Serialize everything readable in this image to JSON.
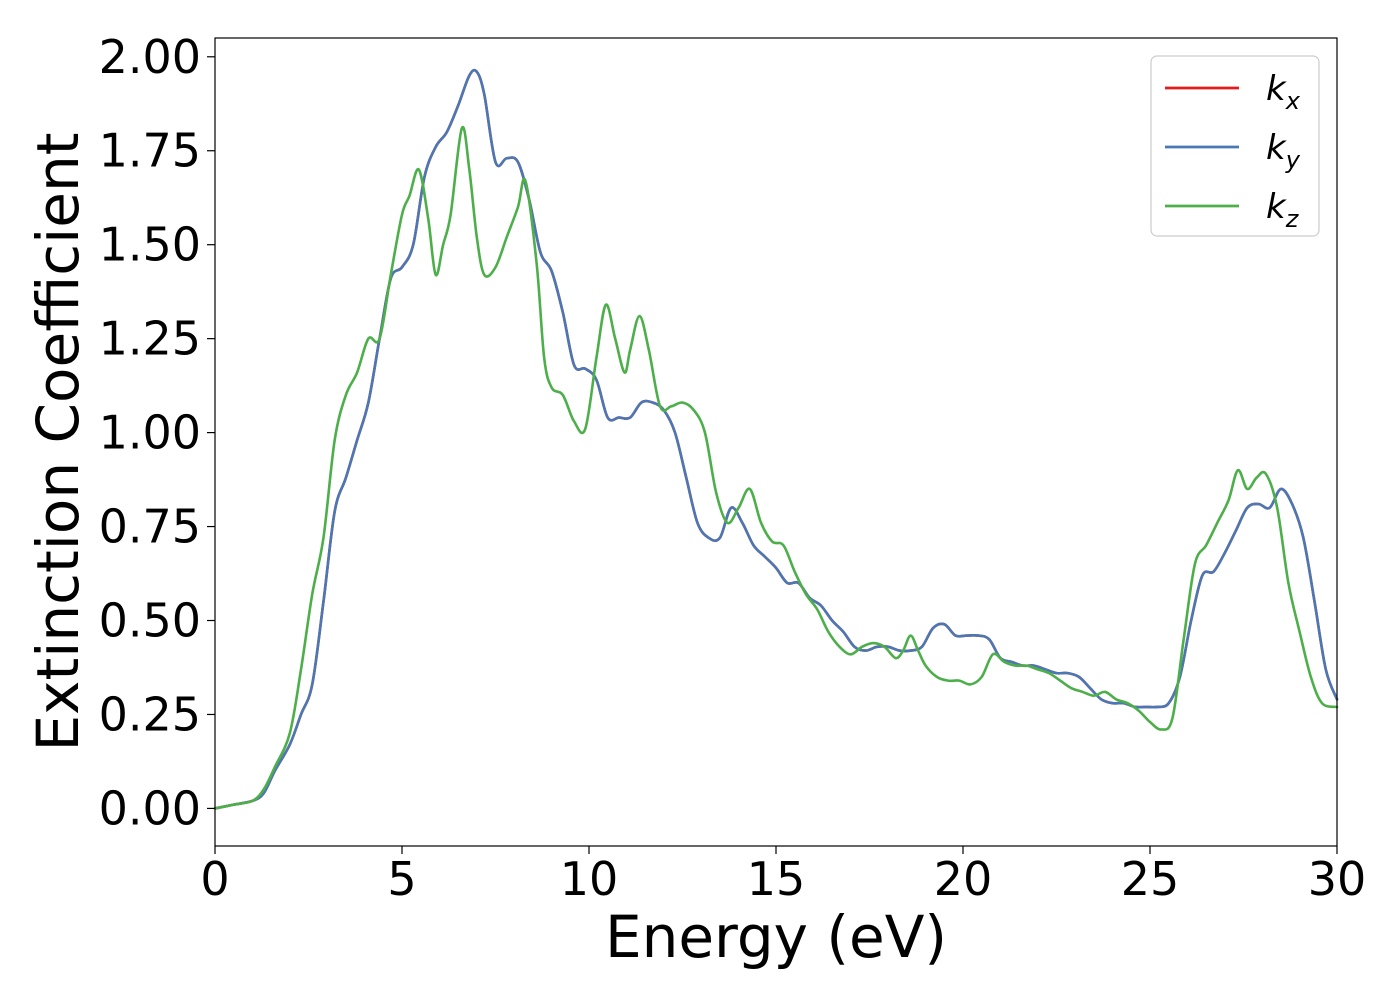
{
  "chart_data": {
    "type": "line",
    "title": "",
    "xlabel": "Energy (eV)",
    "ylabel": "Extinction Coefficient",
    "xlim": [
      0,
      30
    ],
    "ylim": [
      -0.1,
      2.05
    ],
    "xticks": [
      0,
      5,
      10,
      15,
      20,
      25,
      30
    ],
    "xtick_labels": [
      "0",
      "5",
      "10",
      "15",
      "20",
      "25",
      "30"
    ],
    "yticks": [
      0.0,
      0.25,
      0.5,
      0.75,
      1.0,
      1.25,
      1.5,
      1.75,
      2.0
    ],
    "ytick_labels": [
      "0.00",
      "0.25",
      "0.50",
      "0.75",
      "1.00",
      "1.25",
      "1.50",
      "1.75",
      "2.00"
    ],
    "grid": false,
    "legend_position": "top-right",
    "series": [
      {
        "name": "k",
        "subscript": "x",
        "color": "#e41a1c",
        "x": [
          0,
          0.5,
          1.0,
          1.3,
          1.6,
          2.0,
          2.3,
          2.6,
          2.9,
          3.2,
          3.5,
          3.8,
          4.1,
          4.4,
          4.7,
          5.0,
          5.3,
          5.6,
          5.9,
          6.2,
          6.5,
          6.8,
          7.0,
          7.2,
          7.5,
          7.8,
          8.1,
          8.4,
          8.7,
          9.0,
          9.3,
          9.6,
          9.9,
          10.2,
          10.5,
          10.8,
          11.1,
          11.4,
          11.7,
          12.0,
          12.3,
          12.6,
          12.9,
          13.2,
          13.5,
          13.8,
          14.1,
          14.4,
          14.7,
          15.0,
          15.3,
          15.6,
          15.9,
          16.2,
          16.5,
          16.8,
          17.1,
          17.4,
          17.7,
          18.0,
          18.3,
          18.6,
          18.9,
          19.2,
          19.5,
          19.8,
          20.1,
          20.4,
          20.7,
          21.0,
          21.3,
          21.6,
          21.9,
          22.2,
          22.5,
          22.8,
          23.1,
          23.4,
          23.7,
          24.0,
          24.3,
          24.6,
          24.9,
          25.2,
          25.5,
          25.8,
          26.1,
          26.4,
          26.7,
          27.0,
          27.3,
          27.6,
          27.9,
          28.2,
          28.5,
          28.8,
          29.1,
          29.4,
          29.7,
          30.0
        ],
        "y": [
          0.0,
          0.01,
          0.02,
          0.04,
          0.1,
          0.17,
          0.25,
          0.33,
          0.55,
          0.79,
          0.88,
          0.98,
          1.08,
          1.25,
          1.41,
          1.44,
          1.5,
          1.68,
          1.76,
          1.8,
          1.87,
          1.95,
          1.96,
          1.9,
          1.72,
          1.73,
          1.72,
          1.62,
          1.48,
          1.43,
          1.32,
          1.18,
          1.17,
          1.14,
          1.04,
          1.04,
          1.04,
          1.08,
          1.08,
          1.06,
          1.0,
          0.88,
          0.76,
          0.72,
          0.72,
          0.8,
          0.76,
          0.7,
          0.67,
          0.64,
          0.6,
          0.6,
          0.56,
          0.54,
          0.5,
          0.47,
          0.43,
          0.42,
          0.43,
          0.43,
          0.42,
          0.42,
          0.43,
          0.48,
          0.49,
          0.46,
          0.46,
          0.46,
          0.45,
          0.4,
          0.39,
          0.38,
          0.38,
          0.37,
          0.36,
          0.36,
          0.35,
          0.32,
          0.29,
          0.28,
          0.28,
          0.27,
          0.27,
          0.27,
          0.28,
          0.35,
          0.5,
          0.62,
          0.63,
          0.68,
          0.74,
          0.8,
          0.81,
          0.8,
          0.85,
          0.81,
          0.72,
          0.55,
          0.37,
          0.29
        ]
      },
      {
        "name": "k",
        "subscript": "y",
        "color": "#4a78b4",
        "x": [
          0,
          0.5,
          1.0,
          1.3,
          1.6,
          2.0,
          2.3,
          2.6,
          2.9,
          3.2,
          3.5,
          3.8,
          4.1,
          4.4,
          4.7,
          5.0,
          5.3,
          5.6,
          5.9,
          6.2,
          6.5,
          6.8,
          7.0,
          7.2,
          7.5,
          7.8,
          8.1,
          8.4,
          8.7,
          9.0,
          9.3,
          9.6,
          9.9,
          10.2,
          10.5,
          10.8,
          11.1,
          11.4,
          11.7,
          12.0,
          12.3,
          12.6,
          12.9,
          13.2,
          13.5,
          13.8,
          14.1,
          14.4,
          14.7,
          15.0,
          15.3,
          15.6,
          15.9,
          16.2,
          16.5,
          16.8,
          17.1,
          17.4,
          17.7,
          18.0,
          18.3,
          18.6,
          18.9,
          19.2,
          19.5,
          19.8,
          20.1,
          20.4,
          20.7,
          21.0,
          21.3,
          21.6,
          21.9,
          22.2,
          22.5,
          22.8,
          23.1,
          23.4,
          23.7,
          24.0,
          24.3,
          24.6,
          24.9,
          25.2,
          25.5,
          25.8,
          26.1,
          26.4,
          26.7,
          27.0,
          27.3,
          27.6,
          27.9,
          28.2,
          28.5,
          28.8,
          29.1,
          29.4,
          29.7,
          30.0
        ],
        "y": [
          0.0,
          0.01,
          0.02,
          0.04,
          0.1,
          0.17,
          0.25,
          0.33,
          0.55,
          0.79,
          0.88,
          0.98,
          1.08,
          1.25,
          1.41,
          1.44,
          1.5,
          1.68,
          1.76,
          1.8,
          1.87,
          1.95,
          1.96,
          1.9,
          1.72,
          1.73,
          1.72,
          1.62,
          1.48,
          1.43,
          1.32,
          1.18,
          1.17,
          1.14,
          1.04,
          1.04,
          1.04,
          1.08,
          1.08,
          1.06,
          1.0,
          0.88,
          0.76,
          0.72,
          0.72,
          0.8,
          0.76,
          0.7,
          0.67,
          0.64,
          0.6,
          0.6,
          0.56,
          0.54,
          0.5,
          0.47,
          0.43,
          0.42,
          0.43,
          0.43,
          0.42,
          0.42,
          0.43,
          0.48,
          0.49,
          0.46,
          0.46,
          0.46,
          0.45,
          0.4,
          0.39,
          0.38,
          0.38,
          0.37,
          0.36,
          0.36,
          0.35,
          0.32,
          0.29,
          0.28,
          0.28,
          0.27,
          0.27,
          0.27,
          0.28,
          0.35,
          0.5,
          0.62,
          0.63,
          0.68,
          0.74,
          0.8,
          0.81,
          0.8,
          0.85,
          0.81,
          0.72,
          0.55,
          0.37,
          0.29
        ]
      },
      {
        "name": "k",
        "subscript": "z",
        "color": "#4daf4a",
        "x": [
          0,
          0.5,
          1.0,
          1.3,
          1.6,
          2.0,
          2.3,
          2.6,
          2.9,
          3.2,
          3.5,
          3.8,
          4.1,
          4.4,
          4.7,
          5.0,
          5.2,
          5.45,
          5.7,
          5.9,
          6.1,
          6.3,
          6.6,
          6.8,
          7.0,
          7.2,
          7.5,
          7.8,
          8.1,
          8.3,
          8.6,
          8.8,
          9.0,
          9.3,
          9.6,
          9.9,
          10.2,
          10.45,
          10.7,
          10.95,
          11.1,
          11.35,
          11.6,
          11.9,
          12.2,
          12.5,
          12.8,
          13.1,
          13.4,
          13.7,
          14.0,
          14.3,
          14.6,
          14.9,
          15.2,
          15.5,
          15.8,
          16.1,
          16.4,
          16.7,
          17.0,
          17.3,
          17.6,
          17.9,
          18.2,
          18.4,
          18.6,
          18.8,
          19.0,
          19.3,
          19.6,
          19.9,
          20.2,
          20.5,
          20.8,
          21.1,
          21.4,
          21.7,
          22.0,
          22.3,
          22.6,
          22.9,
          23.2,
          23.5,
          23.8,
          24.1,
          24.4,
          24.7,
          25.0,
          25.3,
          25.6,
          25.9,
          26.2,
          26.5,
          26.8,
          27.1,
          27.35,
          27.6,
          27.85,
          28.1,
          28.4,
          28.7,
          29.0,
          29.3,
          29.6,
          30.0
        ],
        "y": [
          0.0,
          0.01,
          0.02,
          0.05,
          0.11,
          0.2,
          0.37,
          0.57,
          0.72,
          0.98,
          1.1,
          1.16,
          1.25,
          1.25,
          1.42,
          1.58,
          1.63,
          1.7,
          1.57,
          1.42,
          1.5,
          1.58,
          1.81,
          1.7,
          1.52,
          1.42,
          1.44,
          1.52,
          1.6,
          1.67,
          1.45,
          1.2,
          1.12,
          1.1,
          1.03,
          1.01,
          1.2,
          1.34,
          1.25,
          1.16,
          1.22,
          1.31,
          1.22,
          1.07,
          1.07,
          1.08,
          1.06,
          1.0,
          0.84,
          0.76,
          0.8,
          0.85,
          0.76,
          0.71,
          0.7,
          0.63,
          0.57,
          0.53,
          0.47,
          0.43,
          0.41,
          0.43,
          0.44,
          0.43,
          0.4,
          0.42,
          0.46,
          0.42,
          0.38,
          0.35,
          0.34,
          0.34,
          0.33,
          0.35,
          0.41,
          0.39,
          0.38,
          0.38,
          0.37,
          0.36,
          0.34,
          0.32,
          0.31,
          0.3,
          0.31,
          0.29,
          0.28,
          0.26,
          0.23,
          0.21,
          0.24,
          0.45,
          0.65,
          0.7,
          0.76,
          0.82,
          0.9,
          0.85,
          0.88,
          0.89,
          0.8,
          0.6,
          0.47,
          0.35,
          0.28,
          0.27
        ]
      }
    ]
  }
}
